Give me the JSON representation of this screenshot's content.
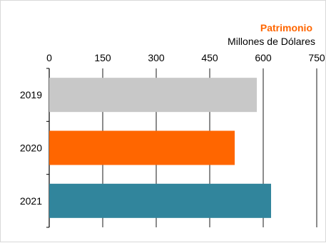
{
  "chart_data": {
    "type": "bar",
    "orientation": "horizontal",
    "title": "Patrimonio",
    "subtitle": "Millones de Dólares",
    "categories": [
      "2019",
      "2020",
      "2021"
    ],
    "values": [
      582,
      520,
      622
    ],
    "bar_colors": [
      "#c8c8c8",
      "#ff6600",
      "#31859c"
    ],
    "title_color": "#ff6600",
    "xlim": [
      0,
      750
    ],
    "xticks": [
      0,
      150,
      300,
      450,
      600,
      750
    ],
    "xtick_labels": [
      "0",
      "150",
      "300",
      "450",
      "600",
      "750"
    ],
    "axis_position": "top",
    "grid": true,
    "gridline_color": "#000000"
  }
}
